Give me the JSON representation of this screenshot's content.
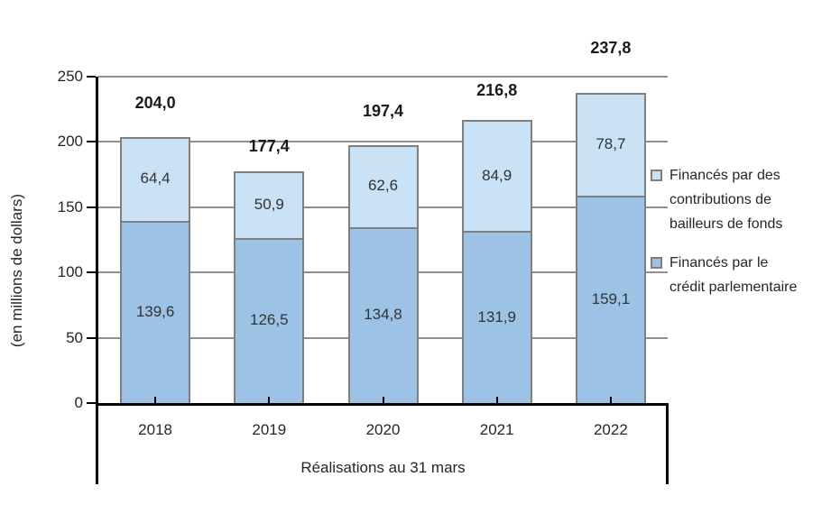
{
  "chart_data": {
    "type": "bar",
    "stacked": true,
    "categories": [
      "2018",
      "2019",
      "2020",
      "2021",
      "2022"
    ],
    "series": [
      {
        "name": "Financés par le crédit parlementaire",
        "color": "#9CC3E5",
        "values": [
          139.6,
          126.5,
          134.8,
          131.9,
          159.1
        ],
        "value_labels": [
          "139,6",
          "126,5",
          "134,8",
          "131,9",
          "159,1"
        ]
      },
      {
        "name": "Financés par des contributions de bailleurs de fonds",
        "color": "#C9E2F6",
        "values": [
          64.4,
          50.9,
          62.6,
          84.9,
          78.7
        ],
        "value_labels": [
          "64,4",
          "50,9",
          "62,6",
          "84,9",
          "78,7"
        ]
      }
    ],
    "totals": [
      204.0,
      177.4,
      197.4,
      216.8,
      237.8
    ],
    "total_labels": [
      "204,0",
      "177,4",
      "197,4",
      "216,8",
      "237,8"
    ],
    "xlabel": "Réalisations au 31 mars",
    "ylabel": "(en millions de dollars)",
    "ylim": [
      0,
      250
    ],
    "yticks": [
      0,
      50,
      100,
      150,
      200,
      250
    ],
    "ytick_labels": [
      "0",
      "50",
      "100",
      "150",
      "200",
      "250"
    ],
    "grid": "horizontal-major",
    "legend_position": "right",
    "legend": [
      {
        "label": "Financés par des\ncontributions de\nbailleurs de fonds",
        "color": "#C9E2F6"
      },
      {
        "label": "Financés par le\ncrédit parlementaire",
        "color": "#9CC3E5"
      }
    ],
    "colors": {
      "bar_border": "#7F7F7F",
      "gridline": "#8F8F8F",
      "axis": "#000000",
      "text": "#262626",
      "series_dark": "#9CC3E5",
      "series_light": "#C9E2F6"
    }
  }
}
